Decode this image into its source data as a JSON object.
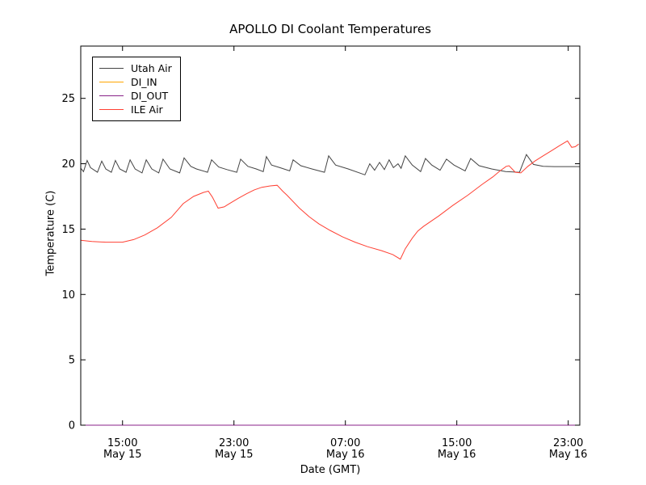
{
  "figure": {
    "background_color": "#ffffff",
    "axes_color": "#000000"
  },
  "chart_data": {
    "type": "line",
    "title": "APOLLO DI Coolant Temperatures",
    "xlabel": "Date (GMT)",
    "ylabel": "Temperature (C)",
    "grid": false,
    "legend_position": "upper left",
    "x_axis_encoding": "hours after May 15 12:00 GMT",
    "xlim": [
      0,
      35.83
    ],
    "ylim": [
      0,
      29
    ],
    "xticks": [
      {
        "t": 3,
        "time": "15:00",
        "date": "May 15"
      },
      {
        "t": 11,
        "time": "23:00",
        "date": "May 15"
      },
      {
        "t": 19,
        "time": "07:00",
        "date": "May 16"
      },
      {
        "t": 27,
        "time": "15:00",
        "date": "May 16"
      },
      {
        "t": 35,
        "time": "23:00",
        "date": "May 16"
      }
    ],
    "yticks": [
      {
        "v": 0,
        "label": "0"
      },
      {
        "v": 5,
        "label": "5"
      },
      {
        "v": 10,
        "label": "10"
      },
      {
        "v": 15,
        "label": "15"
      },
      {
        "v": 20,
        "label": "20"
      },
      {
        "v": 25,
        "label": "25"
      }
    ],
    "series": [
      {
        "name": "Utah Air",
        "color": "#444444",
        "points": [
          [
            0,
            19.65
          ],
          [
            0.2,
            19.4
          ],
          [
            0.46,
            20.25
          ],
          [
            0.7,
            19.7
          ],
          [
            1.2,
            19.35
          ],
          [
            1.51,
            20.2
          ],
          [
            1.8,
            19.6
          ],
          [
            2.2,
            19.35
          ],
          [
            2.49,
            20.25
          ],
          [
            2.8,
            19.6
          ],
          [
            3.25,
            19.35
          ],
          [
            3.54,
            20.3
          ],
          [
            3.9,
            19.6
          ],
          [
            4.4,
            19.3
          ],
          [
            4.7,
            20.3
          ],
          [
            5.1,
            19.6
          ],
          [
            5.6,
            19.3
          ],
          [
            5.91,
            20.35
          ],
          [
            6.4,
            19.6
          ],
          [
            7.1,
            19.3
          ],
          [
            7.42,
            20.45
          ],
          [
            7.9,
            19.8
          ],
          [
            8.3,
            19.6
          ],
          [
            9.1,
            19.35
          ],
          [
            9.39,
            20.3
          ],
          [
            9.9,
            19.75
          ],
          [
            10.5,
            19.55
          ],
          [
            11.2,
            19.35
          ],
          [
            11.48,
            20.35
          ],
          [
            12.0,
            19.8
          ],
          [
            12.6,
            19.6
          ],
          [
            13.1,
            19.4
          ],
          [
            13.33,
            20.55
          ],
          [
            13.7,
            19.9
          ],
          [
            14.3,
            19.7
          ],
          [
            15.0,
            19.45
          ],
          [
            15.25,
            20.3
          ],
          [
            15.8,
            19.85
          ],
          [
            16.6,
            19.6
          ],
          [
            17.5,
            19.35
          ],
          [
            17.8,
            20.6
          ],
          [
            18.3,
            19.9
          ],
          [
            19.2,
            19.6
          ],
          [
            20.4,
            19.15
          ],
          [
            20.75,
            20.0
          ],
          [
            21.1,
            19.5
          ],
          [
            21.45,
            20.1
          ],
          [
            21.8,
            19.55
          ],
          [
            22.14,
            20.3
          ],
          [
            22.45,
            19.7
          ],
          [
            22.78,
            20.0
          ],
          [
            23.0,
            19.65
          ],
          [
            23.3,
            20.6
          ],
          [
            23.8,
            19.9
          ],
          [
            24.4,
            19.4
          ],
          [
            24.75,
            20.4
          ],
          [
            25.2,
            19.9
          ],
          [
            25.8,
            19.5
          ],
          [
            26.26,
            20.35
          ],
          [
            26.8,
            19.9
          ],
          [
            27.6,
            19.45
          ],
          [
            28.0,
            20.4
          ],
          [
            28.6,
            19.85
          ],
          [
            29.5,
            19.6
          ],
          [
            30.5,
            19.4
          ],
          [
            31.5,
            19.35
          ],
          [
            32.0,
            20.7
          ],
          [
            32.5,
            19.95
          ],
          [
            33.2,
            19.8
          ],
          [
            34.0,
            19.78
          ],
          [
            35.8,
            19.78
          ]
        ]
      },
      {
        "name": "DI_IN",
        "color": "#ffa500",
        "points": [
          [
            0,
            0
          ],
          [
            35.83,
            0
          ]
        ]
      },
      {
        "name": "DI_OUT",
        "color": "#882288",
        "points": [
          [
            0,
            0
          ],
          [
            35.83,
            0
          ]
        ]
      },
      {
        "name": "ILE Air",
        "color": "#ff4033",
        "points": [
          [
            0,
            14.15
          ],
          [
            0.8,
            14.05
          ],
          [
            1.8,
            14.0
          ],
          [
            3.0,
            14.0
          ],
          [
            3.8,
            14.2
          ],
          [
            4.6,
            14.55
          ],
          [
            5.5,
            15.1
          ],
          [
            6.5,
            15.9
          ],
          [
            7.36,
            16.95
          ],
          [
            8.1,
            17.5
          ],
          [
            8.8,
            17.8
          ],
          [
            9.16,
            17.9
          ],
          [
            9.45,
            17.45
          ],
          [
            9.86,
            16.6
          ],
          [
            10.3,
            16.7
          ],
          [
            10.6,
            16.9
          ],
          [
            11.3,
            17.35
          ],
          [
            11.9,
            17.7
          ],
          [
            12.46,
            18.0
          ],
          [
            13.0,
            18.2
          ],
          [
            13.6,
            18.3
          ],
          [
            14.1,
            18.35
          ],
          [
            14.5,
            17.9
          ],
          [
            14.8,
            17.6
          ],
          [
            15.7,
            16.6
          ],
          [
            16.4,
            15.95
          ],
          [
            17.1,
            15.4
          ],
          [
            17.9,
            14.9
          ],
          [
            18.8,
            14.4
          ],
          [
            19.7,
            14.0
          ],
          [
            20.6,
            13.65
          ],
          [
            21.6,
            13.35
          ],
          [
            22.4,
            13.05
          ],
          [
            22.95,
            12.7
          ],
          [
            23.3,
            13.5
          ],
          [
            23.8,
            14.3
          ],
          [
            24.2,
            14.85
          ],
          [
            24.6,
            15.2
          ],
          [
            25.7,
            16.0
          ],
          [
            26.7,
            16.8
          ],
          [
            27.8,
            17.6
          ],
          [
            28.8,
            18.4
          ],
          [
            29.6,
            19.0
          ],
          [
            30.1,
            19.45
          ],
          [
            30.55,
            19.8
          ],
          [
            30.75,
            19.85
          ],
          [
            31.2,
            19.35
          ],
          [
            31.6,
            19.3
          ],
          [
            32.1,
            19.8
          ],
          [
            32.6,
            20.2
          ],
          [
            33.2,
            20.6
          ],
          [
            33.8,
            21.0
          ],
          [
            34.4,
            21.4
          ],
          [
            34.95,
            21.75
          ],
          [
            35.25,
            21.25
          ],
          [
            35.5,
            21.3
          ],
          [
            35.75,
            21.5
          ]
        ]
      }
    ]
  }
}
